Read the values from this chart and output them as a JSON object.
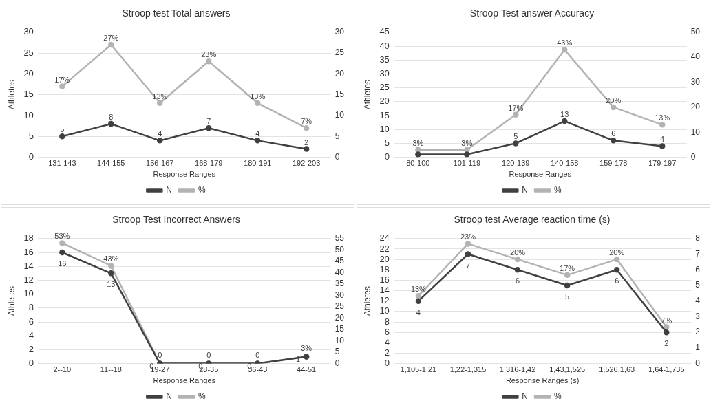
{
  "chart_data": [
    {
      "type": "line",
      "title": "Stroop test Total answers",
      "xlabel": "Response Ranges",
      "ylabel": "Athletes",
      "categories": [
        "131-143",
        "144-155",
        "156-167",
        "168-179",
        "180-191",
        "192-203"
      ],
      "series": [
        {
          "name": "N",
          "color": "#404040",
          "values": [
            5,
            8,
            4,
            7,
            4,
            2
          ],
          "value_labels": [
            "5",
            "8",
            "4",
            "7",
            "4",
            "2"
          ]
        },
        {
          "name": "%",
          "color": "#b3b3b3",
          "axis": "y2",
          "values": [
            17,
            27,
            13,
            23,
            13,
            7
          ],
          "value_labels": [
            "17%",
            "27%",
            "13%",
            "23%",
            "13%",
            "7%"
          ]
        }
      ],
      "ylim": [
        0,
        30
      ],
      "yticks": [
        0,
        5,
        10,
        15,
        20,
        25,
        30
      ],
      "y2lim": [
        0,
        30
      ],
      "y2ticks": [
        0,
        5,
        10,
        15,
        20,
        25,
        30
      ],
      "grid": "y",
      "legend": "bottom",
      "marker": "circle"
    },
    {
      "type": "line",
      "title": "Stroop Test answer Accuracy",
      "xlabel": "Response Ranges",
      "ylabel": "Athletes",
      "categories": [
        "80-100",
        "101-119",
        "120-139",
        "140-158",
        "159-178",
        "179-197"
      ],
      "series": [
        {
          "name": "N",
          "color": "#404040",
          "values": [
            1,
            1,
            5,
            13,
            6,
            4
          ],
          "value_labels": [
            null,
            null,
            "5",
            "13",
            "6",
            "4"
          ]
        },
        {
          "name": "%",
          "color": "#b3b3b3",
          "axis": "y2",
          "values": [
            3,
            3,
            17,
            43,
            20,
            13
          ],
          "value_labels": [
            "3%",
            "3%",
            "17%",
            "43%",
            "20%",
            "13%"
          ]
        }
      ],
      "ylim": [
        0,
        45
      ],
      "yticks": [
        0,
        5,
        10,
        15,
        20,
        25,
        30,
        35,
        40,
        45
      ],
      "y2lim": [
        0,
        50
      ],
      "y2ticks": [
        0,
        10,
        20,
        30,
        40,
        50
      ],
      "grid": "y",
      "legend": "bottom",
      "marker": "circle"
    },
    {
      "type": "line",
      "title": "Stroop Test Incorrect Answers",
      "xlabel": "Response Ranges",
      "ylabel": "Athletes",
      "categories": [
        "2--10",
        "11--18",
        "19-27",
        "28-35",
        "36-43",
        "44-51"
      ],
      "series": [
        {
          "name": "N",
          "color": "#404040",
          "values": [
            16,
            13,
            0,
            0,
            0,
            1
          ],
          "value_labels": [
            "16",
            "13",
            "0",
            "0",
            "0",
            "1"
          ]
        },
        {
          "name": "%",
          "color": "#b3b3b3",
          "axis": "y2",
          "values": [
            53,
            43,
            0,
            0,
            0,
            3
          ],
          "value_labels": [
            "53%",
            "43%",
            "0",
            "0",
            "0",
            "3%"
          ]
        }
      ],
      "ylim": [
        0,
        18
      ],
      "yticks": [
        0,
        2,
        4,
        6,
        8,
        10,
        12,
        14,
        16,
        18
      ],
      "y2lim": [
        0,
        55
      ],
      "y2ticks": [
        0,
        5,
        10,
        15,
        20,
        25,
        30,
        35,
        40,
        45,
        50,
        55
      ],
      "grid": "y",
      "legend": "bottom",
      "marker": "circle"
    },
    {
      "type": "line",
      "title": "Stroop test Average reaction time (s)",
      "xlabel": "Response Ranges (s)",
      "ylabel": "Athletes",
      "categories": [
        "1,105-1,21",
        "1,22-1,315",
        "1,316-1,42",
        "1,43,1,525",
        "1,526,1,63",
        "1,64-1,735"
      ],
      "series": [
        {
          "name": "N",
          "color": "#404040",
          "axis": "y2",
          "values": [
            4,
            7,
            6,
            5,
            6,
            2
          ],
          "value_labels": [
            "4",
            "7",
            "6",
            "5",
            "6",
            "2"
          ]
        },
        {
          "name": "%",
          "color": "#b3b3b3",
          "values": [
            13,
            23,
            20,
            17,
            20,
            7
          ],
          "value_labels": [
            "13%",
            "23%",
            "20%",
            "17%",
            "20%",
            "7%"
          ]
        }
      ],
      "ylim": [
        0,
        24
      ],
      "yticks": [
        0,
        2,
        4,
        6,
        8,
        10,
        12,
        14,
        16,
        18,
        20,
        22,
        24
      ],
      "y2lim": [
        0,
        8
      ],
      "y2ticks": [
        0,
        1,
        2,
        3,
        4,
        5,
        6,
        7,
        8
      ],
      "grid": "y",
      "legend": "bottom",
      "marker": "circle"
    }
  ]
}
